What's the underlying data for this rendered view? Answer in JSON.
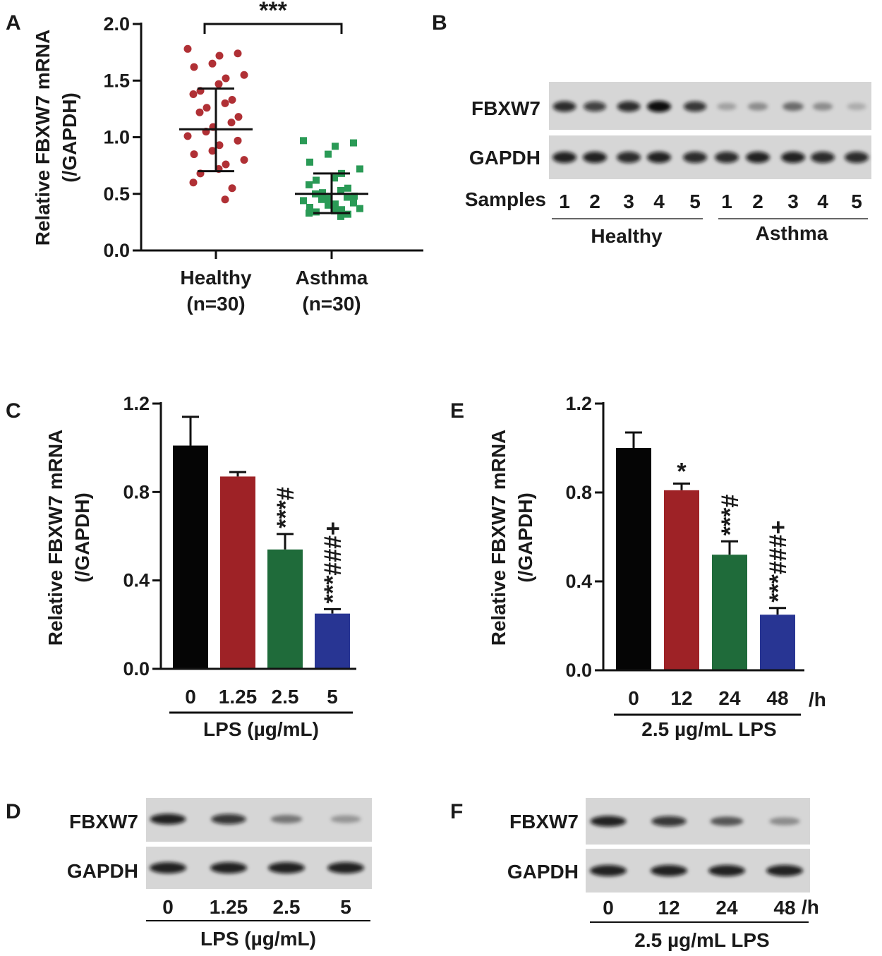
{
  "panels": {
    "a": "A",
    "b": "B",
    "c": "C",
    "d": "D",
    "e": "E",
    "f": "F"
  },
  "chart_data": [
    {
      "panel": "A",
      "type": "scatter",
      "ylabel_line1": "Relative FBXW7 mRNA",
      "ylabel_line2": "(/GAPDH)",
      "ylim": [
        0,
        2.0
      ],
      "yticks": [
        "0.0",
        "0.5",
        "1.0",
        "1.5",
        "2.0"
      ],
      "significance": "***",
      "groups": [
        {
          "name_line1": "Healthy",
          "name_line2": "(n=30)",
          "color": "#b03035",
          "mean": 1.07,
          "sd_low": 0.7,
          "sd_high": 1.43,
          "values": [
            1.78,
            1.74,
            1.72,
            1.65,
            1.62,
            1.55,
            1.52,
            1.47,
            1.41,
            1.38,
            1.33,
            1.3,
            1.26,
            1.22,
            1.18,
            1.13,
            1.09,
            1.05,
            1.01,
            0.97,
            0.93,
            0.88,
            0.85,
            0.8,
            0.76,
            0.72,
            0.68,
            0.6,
            0.55,
            0.45
          ]
        },
        {
          "name_line1": "Asthma",
          "name_line2": "(n=30)",
          "color": "#2a9a56",
          "mean": 0.5,
          "sd_low": 0.33,
          "sd_high": 0.68,
          "values": [
            0.97,
            0.95,
            0.92,
            0.85,
            0.78,
            0.72,
            0.68,
            0.64,
            0.62,
            0.58,
            0.55,
            0.53,
            0.51,
            0.5,
            0.48,
            0.47,
            0.46,
            0.45,
            0.44,
            0.42,
            0.41,
            0.4,
            0.38,
            0.37,
            0.36,
            0.35,
            0.34,
            0.33,
            0.32,
            0.3
          ]
        }
      ]
    },
    {
      "panel": "C",
      "type": "bar",
      "ylabel_line1": "Relative FBXW7 mRNA",
      "ylabel_line2": "(/GAPDH)",
      "ylim": [
        0,
        1.2
      ],
      "yticks": [
        "0.0",
        "0.4",
        "0.8",
        "1.2"
      ],
      "categories": [
        "0",
        "1.25",
        "2.5",
        "5"
      ],
      "values": [
        1.01,
        0.87,
        0.54,
        0.25
      ],
      "errors": [
        0.13,
        0.02,
        0.07,
        0.02
      ],
      "colors": [
        "#050505",
        "#9e2226",
        "#1f6b3a",
        "#283593"
      ],
      "annotations": [
        "",
        "",
        "***#",
        "***###+"
      ],
      "xlabel": "LPS (µg/mL)"
    },
    {
      "panel": "E",
      "type": "bar",
      "ylabel_line1": "Relative FBXW7 mRNA",
      "ylabel_line2": "(/GAPDH)",
      "ylim": [
        0,
        1.2
      ],
      "yticks": [
        "0.0",
        "0.4",
        "0.8",
        "1.2"
      ],
      "categories": [
        "0",
        "12",
        "24",
        "48"
      ],
      "unit": "/h",
      "values": [
        1.0,
        0.81,
        0.52,
        0.25
      ],
      "errors": [
        0.07,
        0.03,
        0.06,
        0.03
      ],
      "colors": [
        "#050505",
        "#9e2226",
        "#1f6b3a",
        "#283593"
      ],
      "annotations": [
        "",
        "*",
        "***#",
        "***###+"
      ],
      "xlabel": "2.5 µg/mL LPS"
    }
  ],
  "blots": {
    "b": {
      "rows": [
        "FBXW7",
        "GAPDH"
      ],
      "samples_label": "Samples",
      "lanes": [
        "1",
        "2",
        "3",
        "4",
        "5",
        "1",
        "2",
        "3",
        "4",
        "5"
      ],
      "groups": [
        "Healthy",
        "Asthma"
      ],
      "fbxw7_intensity": [
        0.85,
        0.75,
        0.85,
        1.0,
        0.8,
        0.25,
        0.35,
        0.5,
        0.35,
        0.2
      ],
      "gapdh_intensity": [
        0.9,
        0.9,
        0.85,
        0.9,
        0.85,
        0.85,
        0.9,
        0.9,
        0.85,
        0.85
      ]
    },
    "d": {
      "rows": [
        "FBXW7",
        "GAPDH"
      ],
      "lanes": [
        "0",
        "1.25",
        "2.5",
        "5"
      ],
      "xlabel": "LPS (µg/mL)",
      "fbxw7_intensity": [
        0.9,
        0.8,
        0.45,
        0.3
      ],
      "gapdh_intensity": [
        0.9,
        0.9,
        0.9,
        0.9
      ]
    },
    "f": {
      "rows": [
        "FBXW7",
        "GAPDH"
      ],
      "lanes": [
        "0",
        "12",
        "24",
        "48"
      ],
      "unit": "/h",
      "xlabel": "2.5 µg/mL LPS",
      "fbxw7_intensity": [
        0.9,
        0.8,
        0.6,
        0.35
      ],
      "gapdh_intensity": [
        0.9,
        0.9,
        0.9,
        0.9
      ]
    }
  }
}
